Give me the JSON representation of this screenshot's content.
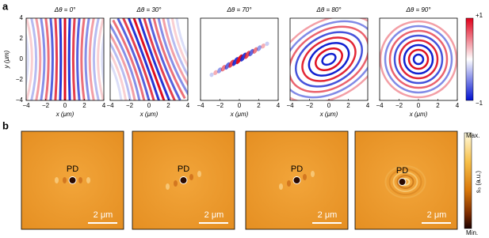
{
  "figure": {
    "panel_a": {
      "label": "a",
      "titles": [
        "Δθ = 0°",
        "Δθ = 30°",
        "Δθ = 70°",
        "Δθ = 80°",
        "Δθ = 90°"
      ],
      "x_label": "x (μm)",
      "y_label": "y (μm)",
      "x_ticks": [
        "−4",
        "−2",
        "0",
        "2",
        "4"
      ],
      "y_ticks": [
        "4",
        "2",
        "0",
        "−2",
        "−4"
      ],
      "colorbar": {
        "max": "+1",
        "min": "−1"
      }
    },
    "panel_b": {
      "label": "b",
      "marker": "PD",
      "scale_bar": "2 μm",
      "colorbar": {
        "max": "Max.",
        "min": "Min.",
        "label": "s₃ (a.u.)"
      }
    }
  }
}
